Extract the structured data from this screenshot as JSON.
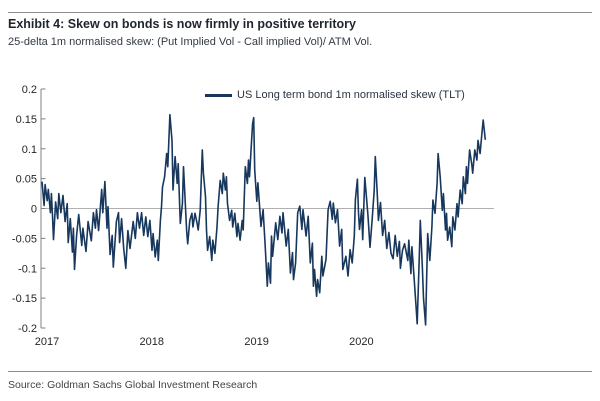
{
  "header": {
    "title": "Exhibit 4: Skew on bonds is now firmly in positive territory",
    "subtitle": "25-delta 1m normalised skew: (Put Implied Vol - Call implied Vol)/ ATM Vol."
  },
  "source": "Source: Goldman Sachs Global Investment Research",
  "colors": {
    "series_line": "#17375d",
    "axis": "#808080",
    "zero_gridline": "#b0b0b0",
    "divider_rule": "#8c8c8c",
    "tick_label_text": "#262626"
  },
  "chart_data": {
    "type": "line",
    "title": "Exhibit 4: Skew on bonds is now firmly in positive territory",
    "subtitle": "25-delta 1m normalised skew: (Put Implied Vol - Call implied Vol)/ ATM Vol.",
    "xlabel": "",
    "ylabel": "",
    "legend_position": "top-center",
    "grid": "zero-line-only",
    "xlim": [
      2017.0,
      2021.33
    ],
    "ylim": [
      -0.2,
      0.2
    ],
    "x_ticks": [
      2017,
      2018,
      2019,
      2020
    ],
    "x_tick_labels": [
      "2017",
      "2018",
      "2019",
      "2020"
    ],
    "y_ticks": [
      0.2,
      0.15,
      0.1,
      0.05,
      0,
      -0.05,
      -0.1,
      -0.15,
      -0.2
    ],
    "y_tick_labels": [
      "0.2",
      "0.15",
      "0.1",
      "0.05",
      "0",
      "-0.05",
      "-0.1",
      "-0.15",
      "-0.2"
    ],
    "series": [
      {
        "name": "US Long term bond 1m normalised skew (TLT)",
        "color": "#17375d",
        "points": [
          [
            2017.0,
            0.045
          ],
          [
            2017.02,
            0.005
          ],
          [
            2017.03,
            0.04
          ],
          [
            2017.05,
            0.013
          ],
          [
            2017.06,
            0.032
          ],
          [
            2017.08,
            -0.007
          ],
          [
            2017.09,
            0.025
          ],
          [
            2017.1,
            -0.012
          ],
          [
            2017.11,
            -0.052
          ],
          [
            2017.13,
            0.011
          ],
          [
            2017.15,
            -0.017
          ],
          [
            2017.16,
            0.025
          ],
          [
            2017.18,
            -0.007
          ],
          [
            2017.2,
            0.022
          ],
          [
            2017.22,
            -0.022
          ],
          [
            2017.24,
            0.008
          ],
          [
            2017.25,
            -0.057
          ],
          [
            2017.27,
            -0.017
          ],
          [
            2017.29,
            -0.073
          ],
          [
            2017.3,
            -0.033
          ],
          [
            2017.31,
            -0.102
          ],
          [
            2017.33,
            -0.045
          ],
          [
            2017.35,
            -0.01
          ],
          [
            2017.38,
            -0.062
          ],
          [
            2017.39,
            -0.033
          ],
          [
            2017.42,
            -0.072
          ],
          [
            2017.44,
            -0.022
          ],
          [
            2017.47,
            -0.054
          ],
          [
            2017.49,
            -0.007
          ],
          [
            2017.51,
            -0.033
          ],
          [
            2017.52,
            -0.002
          ],
          [
            2017.54,
            -0.037
          ],
          [
            2017.57,
            0.032
          ],
          [
            2017.58,
            -0.007
          ],
          [
            2017.6,
            0.045
          ],
          [
            2017.62,
            -0.033
          ],
          [
            2017.63,
            0.003
          ],
          [
            2017.65,
            -0.077
          ],
          [
            2017.67,
            -0.045
          ],
          [
            2017.68,
            -0.098
          ],
          [
            2017.71,
            -0.022
          ],
          [
            2017.73,
            -0.007
          ],
          [
            2017.74,
            -0.057
          ],
          [
            2017.76,
            -0.017
          ],
          [
            2017.78,
            -0.067
          ],
          [
            2017.8,
            -0.1
          ],
          [
            2017.82,
            -0.037
          ],
          [
            2017.84,
            -0.067
          ],
          [
            2017.87,
            -0.022
          ],
          [
            2017.89,
            -0.05
          ],
          [
            2017.91,
            -0.007
          ],
          [
            2017.93,
            -0.033
          ],
          [
            2017.95,
            -0.007
          ],
          [
            2017.97,
            -0.045
          ],
          [
            2017.99,
            -0.014
          ],
          [
            2018.01,
            -0.047
          ],
          [
            2018.03,
            -0.02
          ],
          [
            2018.05,
            -0.07
          ],
          [
            2018.06,
            -0.042
          ],
          [
            2018.08,
            -0.081
          ],
          [
            2018.1,
            -0.053
          ],
          [
            2018.11,
            -0.087
          ],
          [
            2018.13,
            -0.02
          ],
          [
            2018.14,
            0.003
          ],
          [
            2018.15,
            0.036
          ],
          [
            2018.17,
            0.053
          ],
          [
            2018.19,
            0.092
          ],
          [
            2018.2,
            0.07
          ],
          [
            2018.22,
            0.157
          ],
          [
            2018.24,
            0.114
          ],
          [
            2018.25,
            0.031
          ],
          [
            2018.27,
            0.087
          ],
          [
            2018.29,
            0.042
          ],
          [
            2018.3,
            0.075
          ],
          [
            2018.32,
            -0.025
          ],
          [
            2018.34,
            0.008
          ],
          [
            2018.35,
            0.07
          ],
          [
            2018.36,
            0.036
          ],
          [
            2018.38,
            -0.036
          ],
          [
            2018.39,
            -0.059
          ],
          [
            2018.41,
            -0.02
          ],
          [
            2018.43,
            -0.008
          ],
          [
            2018.44,
            -0.031
          ],
          [
            2018.46,
            -0.008
          ],
          [
            2018.48,
            -0.025
          ],
          [
            2018.49,
            -0.036
          ],
          [
            2018.51,
            -0.003
          ],
          [
            2018.53,
            0.098
          ],
          [
            2018.54,
            0.059
          ],
          [
            2018.56,
            0.02
          ],
          [
            2018.57,
            -0.036
          ],
          [
            2018.58,
            -0.07
          ],
          [
            2018.6,
            -0.047
          ],
          [
            2018.62,
            -0.087
          ],
          [
            2018.63,
            -0.053
          ],
          [
            2018.65,
            -0.075
          ],
          [
            2018.67,
            -0.031
          ],
          [
            2018.68,
            0.003
          ],
          [
            2018.7,
            0.047
          ],
          [
            2018.72,
            0.025
          ],
          [
            2018.73,
            0.059
          ],
          [
            2018.75,
            0.031
          ],
          [
            2018.76,
            0.053
          ],
          [
            2018.77,
            0.008
          ],
          [
            2018.79,
            -0.02
          ],
          [
            2018.81,
            -0.003
          ],
          [
            2018.82,
            -0.031
          ],
          [
            2018.84,
            -0.008
          ],
          [
            2018.86,
            -0.047
          ],
          [
            2018.87,
            -0.025
          ],
          [
            2018.89,
            -0.053
          ],
          [
            2018.91,
            -0.02
          ],
          [
            2018.92,
            -0.036
          ],
          [
            2018.94,
            0.07
          ],
          [
            2018.96,
            0.042
          ],
          [
            2018.97,
            0.081
          ],
          [
            2018.98,
            0.053
          ],
          [
            2019.0,
            0.114
          ],
          [
            2019.01,
            0.142
          ],
          [
            2019.02,
            0.152
          ],
          [
            2019.03,
            0.065
          ],
          [
            2019.05,
            0.012
          ],
          [
            2019.06,
            0.043
          ],
          [
            2019.09,
            -0.03
          ],
          [
            2019.11,
            -0.002
          ],
          [
            2019.13,
            -0.063
          ],
          [
            2019.15,
            -0.13
          ],
          [
            2019.16,
            -0.091
          ],
          [
            2019.18,
            -0.125
          ],
          [
            2019.19,
            -0.046
          ],
          [
            2019.2,
            -0.08
          ],
          [
            2019.23,
            -0.024
          ],
          [
            2019.25,
            -0.052
          ],
          [
            2019.27,
            -0.013
          ],
          [
            2019.29,
            -0.041
          ],
          [
            2019.3,
            -0.007
          ],
          [
            2019.33,
            -0.063
          ],
          [
            2019.35,
            -0.035
          ],
          [
            2019.37,
            -0.108
          ],
          [
            2019.39,
            -0.074
          ],
          [
            2019.4,
            -0.119
          ],
          [
            2019.42,
            -0.091
          ],
          [
            2019.44,
            -0.007
          ],
          [
            2019.46,
            0.004
          ],
          [
            2019.48,
            -0.035
          ],
          [
            2019.49,
            -0.002
          ],
          [
            2019.52,
            -0.046
          ],
          [
            2019.54,
            -0.013
          ],
          [
            2019.56,
            -0.091
          ],
          [
            2019.58,
            -0.058
          ],
          [
            2019.59,
            -0.13
          ],
          [
            2019.6,
            -0.102
          ],
          [
            2019.62,
            -0.147
          ],
          [
            2019.63,
            -0.119
          ],
          [
            2019.65,
            -0.141
          ],
          [
            2019.67,
            -0.08
          ],
          [
            2019.68,
            -0.113
          ],
          [
            2019.71,
            -0.085
          ],
          [
            2019.73,
            -0.002
          ],
          [
            2019.75,
            0.012
          ],
          [
            2019.77,
            -0.018
          ],
          [
            2019.78,
            0.009
          ],
          [
            2019.8,
            -0.024
          ],
          [
            2019.82,
            -0.002
          ],
          [
            2019.84,
            -0.063
          ],
          [
            2019.86,
            -0.035
          ],
          [
            2019.87,
            -0.102
          ],
          [
            2019.9,
            -0.08
          ],
          [
            2019.92,
            -0.113
          ],
          [
            2019.94,
            -0.069
          ],
          [
            2019.96,
            -0.091
          ],
          [
            2019.98,
            -0.046
          ],
          [
            2019.99,
            0.015
          ],
          [
            2020.01,
            0.049
          ],
          [
            2020.02,
            -0.007
          ],
          [
            2020.03,
            -0.035
          ],
          [
            2020.05,
            -0.002
          ],
          [
            2020.06,
            -0.052
          ],
          [
            2020.08,
            0.052
          ],
          [
            2020.11,
            -0.01
          ],
          [
            2020.13,
            -0.065
          ],
          [
            2020.15,
            -0.02
          ],
          [
            2020.17,
            0.03
          ],
          [
            2020.18,
            0.087
          ],
          [
            2020.2,
            0.02
          ],
          [
            2020.21,
            -0.02
          ],
          [
            2020.23,
            0.01
          ],
          [
            2020.25,
            -0.045
          ],
          [
            2020.27,
            -0.02
          ],
          [
            2020.29,
            -0.067
          ],
          [
            2020.31,
            -0.04
          ],
          [
            2020.33,
            -0.075
          ],
          [
            2020.35,
            -0.084
          ],
          [
            2020.37,
            -0.045
          ],
          [
            2020.39,
            -0.08
          ],
          [
            2020.41,
            -0.055
          ],
          [
            2020.42,
            -0.1
          ],
          [
            2020.44,
            -0.07
          ],
          [
            2020.46,
            -0.059
          ],
          [
            2020.49,
            -0.087
          ],
          [
            2020.5,
            -0.053
          ],
          [
            2020.52,
            -0.109
          ],
          [
            2020.53,
            -0.064
          ],
          [
            2020.55,
            -0.114
          ],
          [
            2020.57,
            -0.165
          ],
          [
            2020.58,
            -0.193
          ],
          [
            2020.6,
            -0.08
          ],
          [
            2020.61,
            -0.02
          ],
          [
            2020.63,
            -0.1
          ],
          [
            2020.64,
            -0.15
          ],
          [
            2020.66,
            -0.195
          ],
          [
            2020.67,
            -0.12
          ],
          [
            2020.68,
            -0.042
          ],
          [
            2020.7,
            -0.087
          ],
          [
            2020.72,
            -0.031
          ],
          [
            2020.73,
            0.014
          ],
          [
            2020.75,
            -0.008
          ],
          [
            2020.77,
            0.042
          ],
          [
            2020.78,
            0.092
          ],
          [
            2020.8,
            0.053
          ],
          [
            2020.82,
            -0.003
          ],
          [
            2020.83,
            0.025
          ],
          [
            2020.85,
            -0.036
          ],
          [
            2020.86,
            -0.008
          ],
          [
            2020.87,
            -0.053
          ],
          [
            2020.89,
            -0.031
          ],
          [
            2020.91,
            -0.064
          ],
          [
            2020.92,
            -0.014
          ],
          [
            2020.94,
            -0.036
          ],
          [
            2020.96,
            0.008
          ],
          [
            2020.97,
            -0.014
          ],
          [
            2020.99,
            0.031
          ],
          [
            2021.01,
            0.008
          ],
          [
            2021.02,
            0.053
          ],
          [
            2021.04,
            0.025
          ],
          [
            2021.05,
            0.07
          ],
          [
            2021.06,
            0.042
          ],
          [
            2021.08,
            0.098
          ],
          [
            2021.1,
            0.075
          ],
          [
            2021.11,
            0.059
          ],
          [
            2021.13,
            0.098
          ],
          [
            2021.15,
            0.081
          ],
          [
            2021.16,
            0.114
          ],
          [
            2021.18,
            0.092
          ],
          [
            2021.2,
            0.131
          ],
          [
            2021.21,
            0.148
          ],
          [
            2021.23,
            0.115
          ]
        ]
      }
    ]
  }
}
